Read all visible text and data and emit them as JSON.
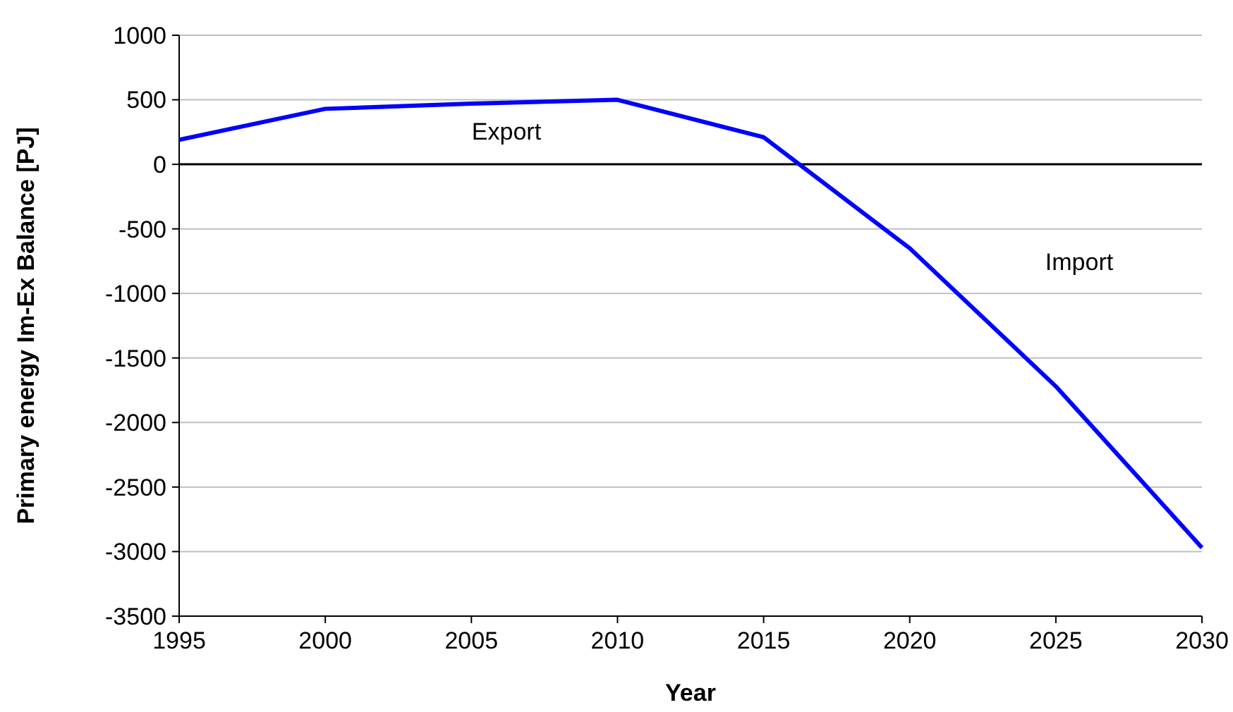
{
  "chart_data": {
    "type": "line",
    "xlabel": "Year",
    "ylabel": "Primary energy Im-Ex Balance [PJ]",
    "x": [
      1995,
      2000,
      2005,
      2010,
      2015,
      2020,
      2025,
      2030
    ],
    "series": [
      {
        "color": "#0000ff",
        "values": [
          190,
          430,
          470,
          500,
          210,
          -650,
          -1720,
          -2970
        ]
      }
    ],
    "xlim": [
      1995,
      2030
    ],
    "xticks": [
      1995,
      2000,
      2005,
      2010,
      2015,
      2020,
      2025,
      2030
    ],
    "ylim": [
      -3500,
      1000
    ],
    "yticks": [
      -3500,
      -3000,
      -2500,
      -2000,
      -1500,
      -1000,
      -500,
      0,
      500,
      1000
    ],
    "grid": "y",
    "marker": "none",
    "line_style": "solid",
    "annotations": [
      "Export",
      "Import"
    ]
  }
}
